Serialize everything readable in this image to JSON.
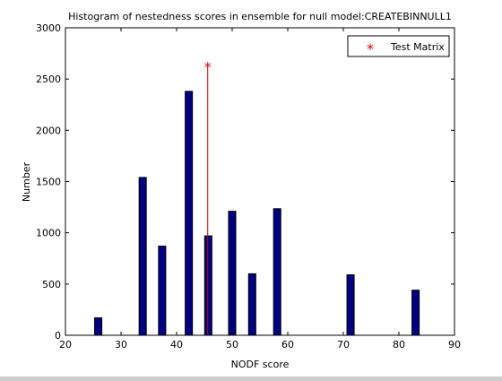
{
  "chart_data": {
    "type": "bar",
    "title": "Histogram of nestedness scores in ensemble for null model:CREATEBINNULL1",
    "xlabel": "NODF score",
    "ylabel": "Number",
    "xlim": [
      20,
      90
    ],
    "ylim": [
      0,
      3000
    ],
    "xticks": [
      20,
      30,
      40,
      50,
      60,
      70,
      80,
      90
    ],
    "yticks": [
      0,
      500,
      1000,
      1500,
      2000,
      2500,
      3000
    ],
    "bin_width": 1.3,
    "bars": [
      {
        "x": 25.9,
        "value": 170
      },
      {
        "x": 33.9,
        "value": 1540
      },
      {
        "x": 37.4,
        "value": 870
      },
      {
        "x": 42.2,
        "value": 2380
      },
      {
        "x": 45.7,
        "value": 970
      },
      {
        "x": 50.0,
        "value": 1210
      },
      {
        "x": 53.6,
        "value": 600
      },
      {
        "x": 58.1,
        "value": 1235
      },
      {
        "x": 71.3,
        "value": 590
      },
      {
        "x": 83.0,
        "value": 440
      }
    ],
    "bar_color": "#000080",
    "test_matrix": {
      "label": "Test Matrix",
      "x": 45.6,
      "value": 2620,
      "color": "#cc0000"
    },
    "legend_position": "top-right",
    "grid": false
  }
}
